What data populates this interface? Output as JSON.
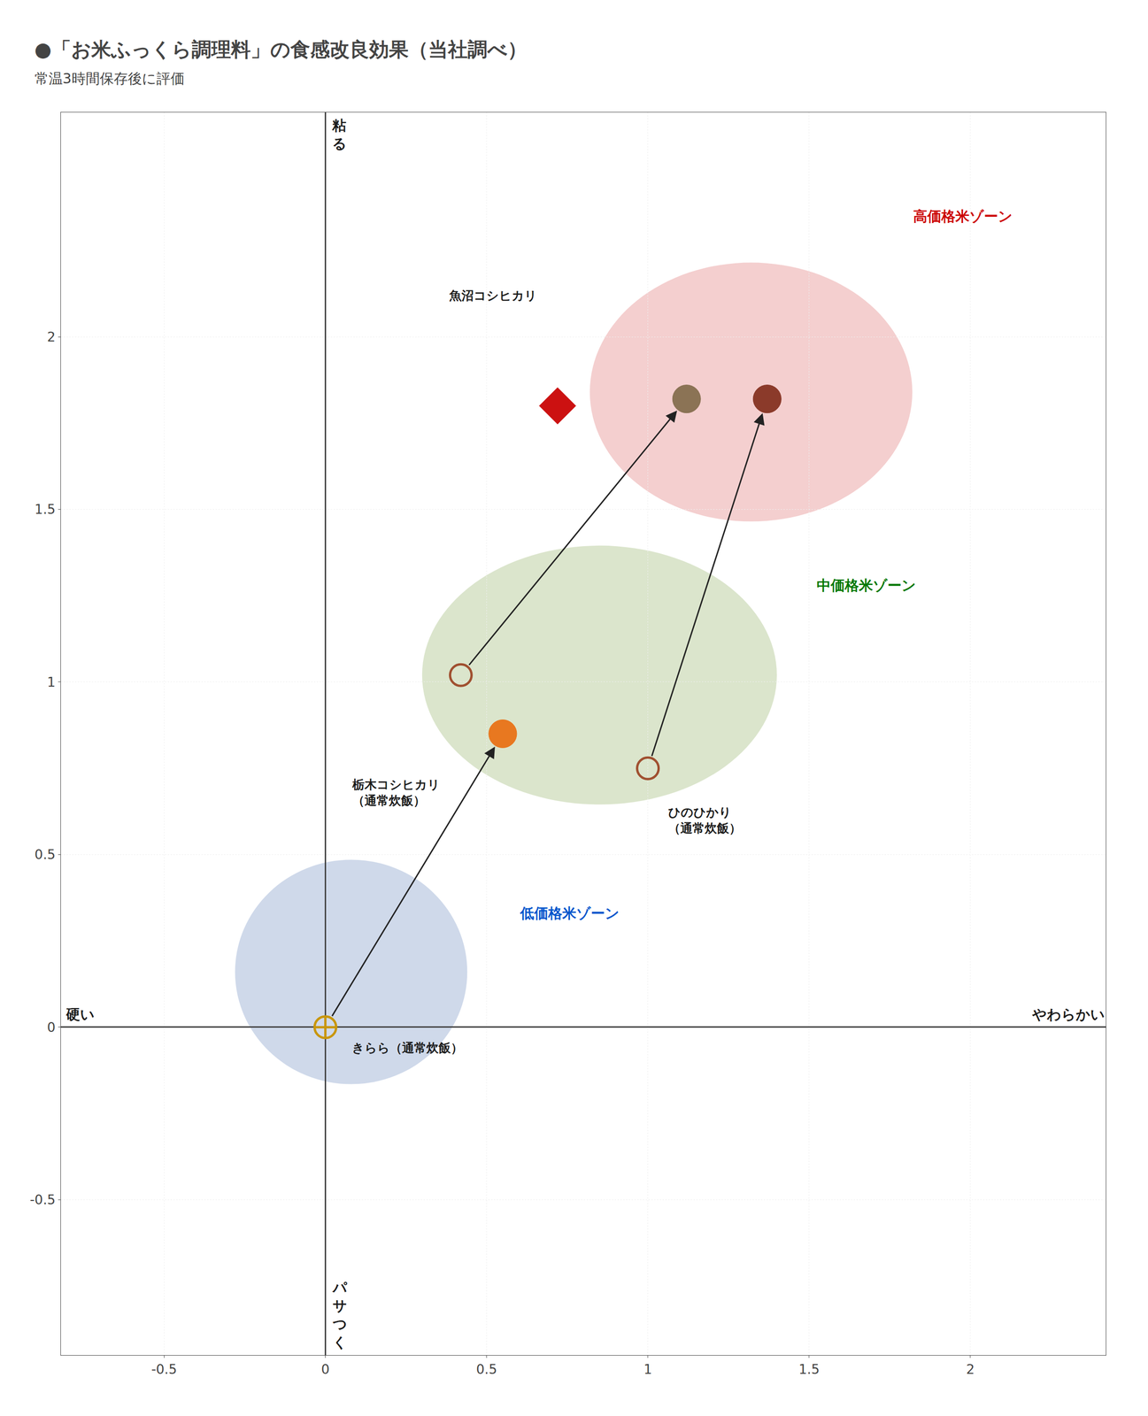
{
  "chart_data": {
    "type": "scatter",
    "title": "●「お米ふっくら調理料」の食感改良効果（当社調べ）",
    "subtitle": "常温3時間保存後に評価",
    "xlabel_left": "硬い",
    "xlabel_right": "やわらかい",
    "ylabel_top": "粘\nる",
    "ylabel_bottom": "パ\nサ\nつ\nく",
    "xlim": [
      -0.82,
      2.42
    ],
    "xticks": [
      -0.5,
      0,
      0.5,
      1,
      1.5,
      2
    ],
    "ylim": [
      -0.95,
      2.65
    ],
    "yticks": [
      -0.5,
      0,
      0.5,
      1,
      1.5,
      2
    ],
    "grid": true,
    "series": [
      {
        "x": [
          0.0
        ],
        "values": [
          0.0
        ],
        "color": "#c8960c",
        "marker": "circle-cross-open"
      },
      {
        "x": [
          0.42,
          1.0
        ],
        "values": [
          1.02,
          0.75
        ],
        "color": "#a05030",
        "marker": "circle-open"
      },
      {
        "x": [
          0.55,
          1.12,
          1.37
        ],
        "values": [
          0.85,
          1.82,
          1.82
        ],
        "colors": [
          "#e87820",
          "#8b7355",
          "#8b3a2a"
        ],
        "marker": "circle"
      },
      {
        "x": [
          0.72
        ],
        "values": [
          1.8
        ],
        "color": "#cc1111",
        "marker": "diamond"
      }
    ],
    "arrows": [
      {
        "from_x": 0.0,
        "from_y": 0.0,
        "x": 0.55,
        "y": 0.85
      },
      {
        "from_x": 0.42,
        "from_y": 1.02,
        "x": 1.12,
        "y": 1.82
      },
      {
        "from_x": 1.0,
        "from_y": 0.75,
        "x": 1.37,
        "y": 1.82
      }
    ],
    "zones": [
      {
        "label": "高価格米ゾーン",
        "label_color": "#cc0000",
        "label_x": 1.82,
        "label_y": 2.35,
        "center": [
          1.32,
          1.84
        ],
        "width": 1.0,
        "height": 0.75,
        "color": "#d96060"
      },
      {
        "label": "中価格米ゾーン",
        "label_color": "#007700",
        "label_x": 1.52,
        "label_y": 1.28,
        "center": [
          0.85,
          1.02
        ],
        "width": 1.1,
        "height": 0.75,
        "color": "#88aa55"
      },
      {
        "label": "低価格米ゾーン",
        "label_color": "#0055cc",
        "label_x": 0.6,
        "label_y": 0.33,
        "center": [
          0.08,
          0.16
        ],
        "width": 0.72,
        "height": 0.65,
        "color": "#6080bb"
      }
    ],
    "annotations": [
      {
        "text": "きらら（通常炊飯）",
        "x": 0.08,
        "y": -0.06
      },
      {
        "text": "栃木コシヒカリ\n（通常炊飯）",
        "x": 0.08,
        "y": 0.68
      },
      {
        "text": "ひのひかり\n（通常炊飯）",
        "x": 1.06,
        "y": 0.6
      },
      {
        "text": "魚沼コシヒカリ",
        "x": 0.38,
        "y": 2.12
      }
    ]
  }
}
